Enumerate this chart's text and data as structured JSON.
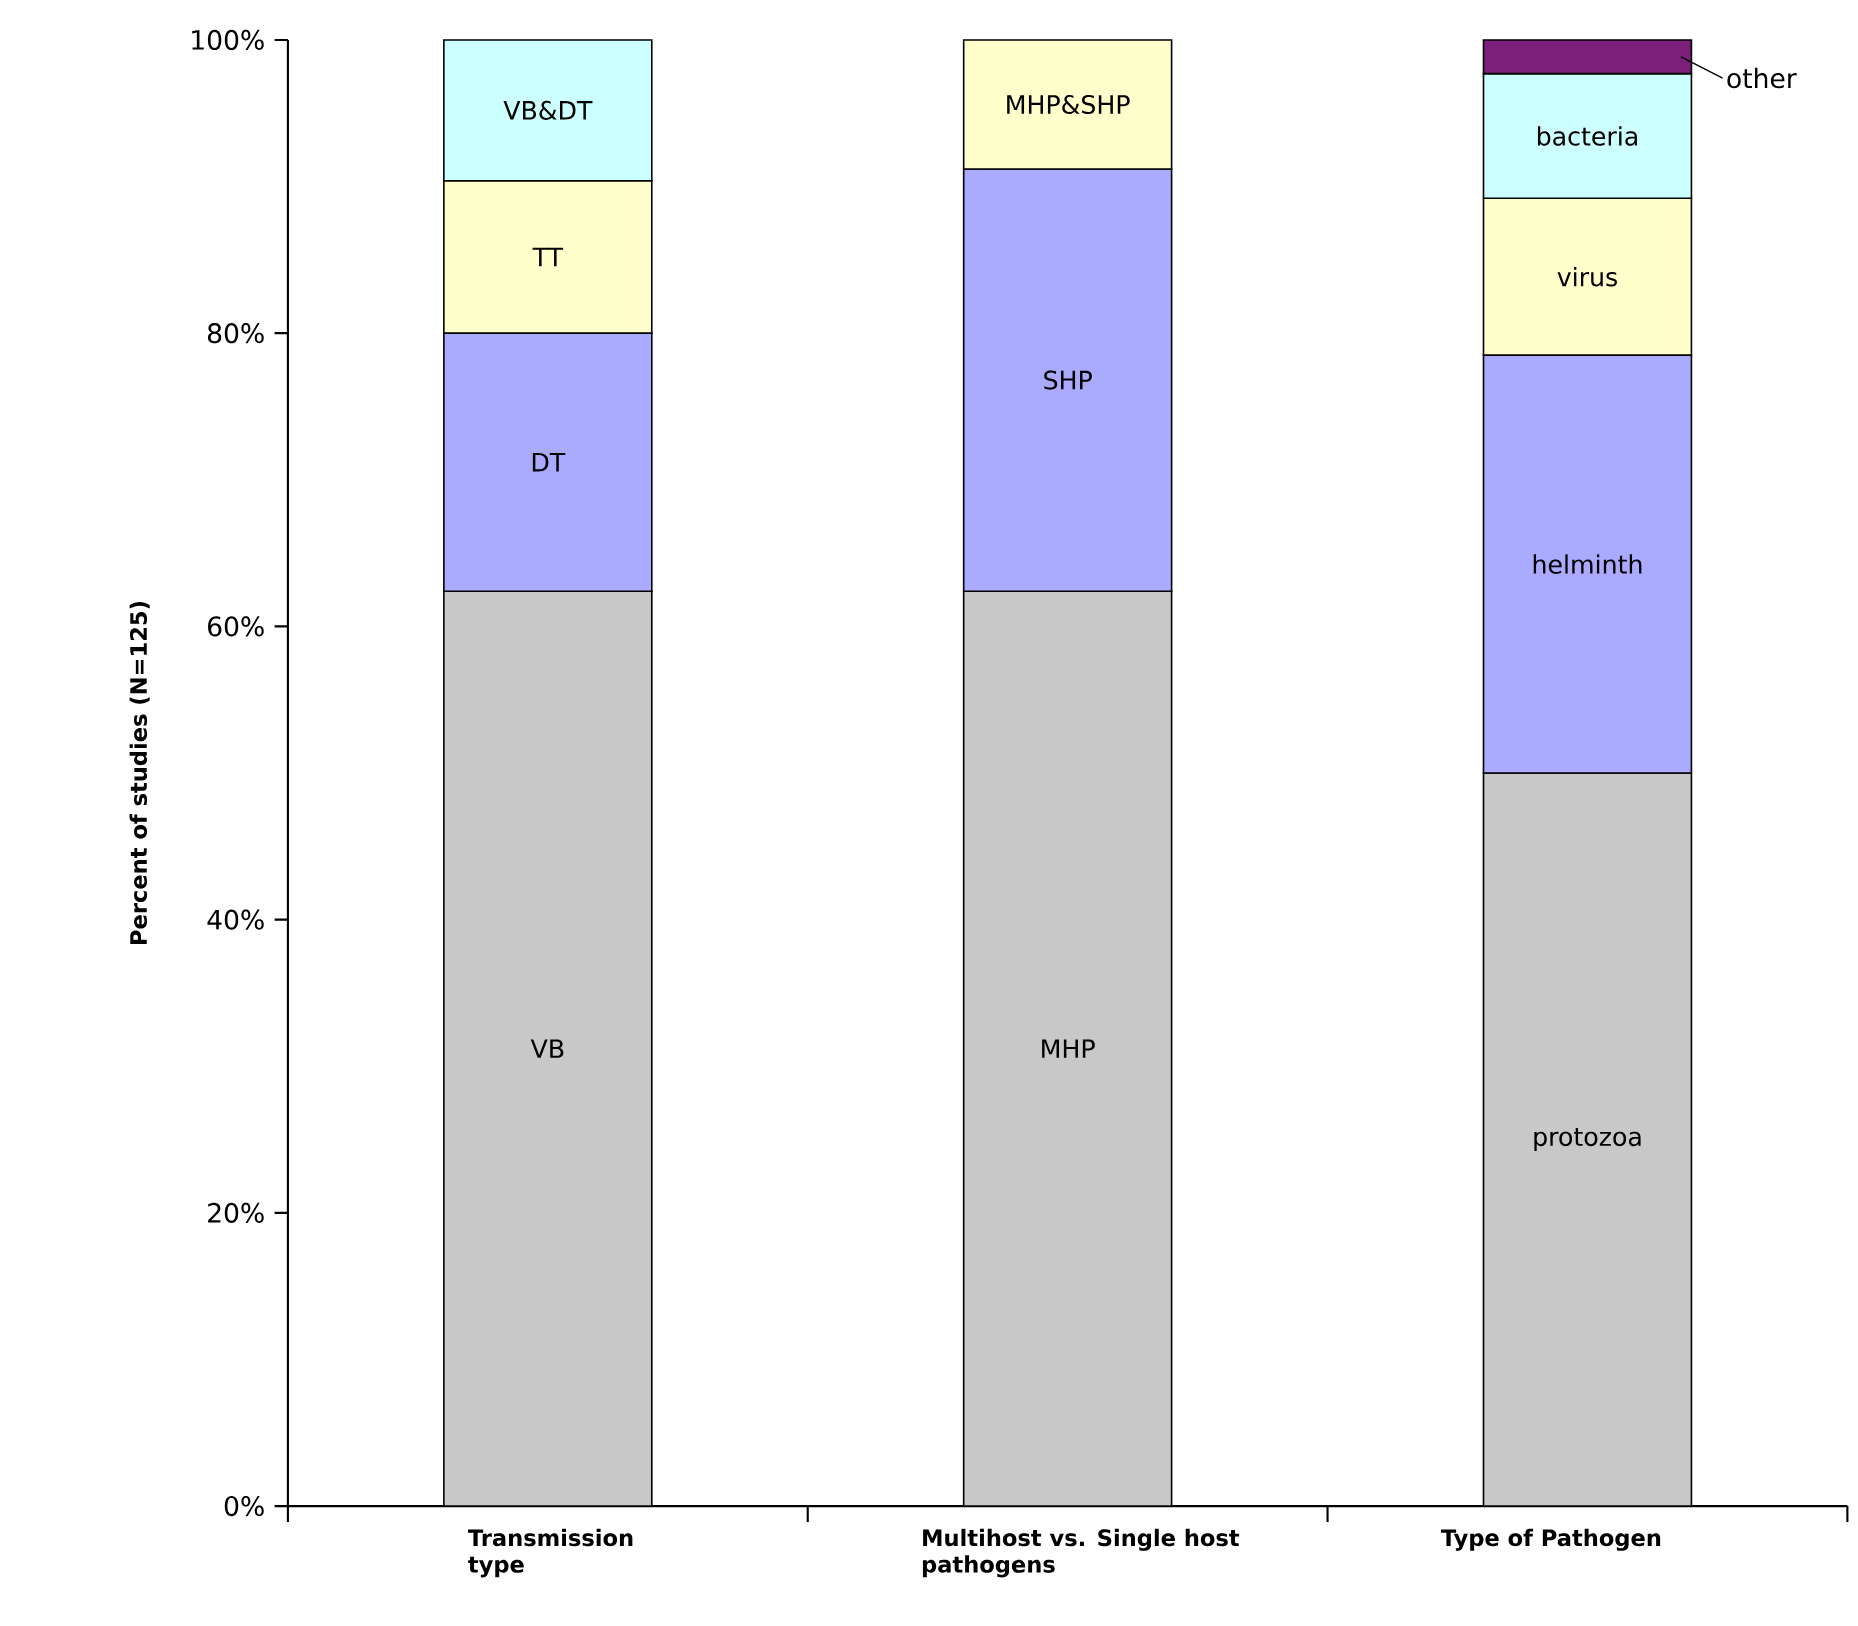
{
  "chart_data": {
    "type": "bar",
    "stacked": true,
    "ylabel": "Percent of studies  (N=125)",
    "categories": [
      "Transmission type",
      "Multihost vs. Single host pathogens",
      "Type of Pathogen"
    ],
    "ylim": [
      0,
      100
    ],
    "yticks": [
      {
        "value": 0,
        "label": "0%"
      },
      {
        "value": 20,
        "label": "20%"
      },
      {
        "value": 40,
        "label": "40%"
      },
      {
        "value": 60,
        "label": "60%"
      },
      {
        "value": 80,
        "label": "80%"
      },
      {
        "value": 100,
        "label": "100%"
      }
    ],
    "grid": false,
    "series": [
      {
        "name": "VB",
        "color": "#c8c8c8",
        "values": [
          62.4,
          null,
          null
        ]
      },
      {
        "name": "DT",
        "color": "#aaaaff",
        "values": [
          17.6,
          null,
          null
        ]
      },
      {
        "name": "TT",
        "color": "#ffffcc",
        "values": [
          10.4,
          null,
          null
        ]
      },
      {
        "name": "VB&DT",
        "color": "#ccffff",
        "values": [
          9.6,
          null,
          null
        ]
      },
      {
        "name": "MHP",
        "color": "#c8c8c8",
        "values": [
          null,
          62.4,
          null
        ]
      },
      {
        "name": "SHP",
        "color": "#aaaaff",
        "values": [
          null,
          28.8,
          null
        ]
      },
      {
        "name": "MHP&SHP",
        "color": "#ffffcc",
        "values": [
          null,
          8.8,
          null
        ]
      },
      {
        "name": "protozoa",
        "color": "#c8c8c8",
        "values": [
          null,
          null,
          50
        ]
      },
      {
        "name": "helminth",
        "color": "#aaaaff",
        "values": [
          null,
          null,
          28.5
        ]
      },
      {
        "name": "virus",
        "color": "#ffffcc",
        "values": [
          null,
          null,
          10.7
        ]
      },
      {
        "name": "bacteria",
        "color": "#ccffff",
        "values": [
          null,
          null,
          8.5
        ]
      },
      {
        "name": "other",
        "color": "#7b1f7b",
        "values": [
          null,
          null,
          2.3
        ]
      }
    ]
  }
}
